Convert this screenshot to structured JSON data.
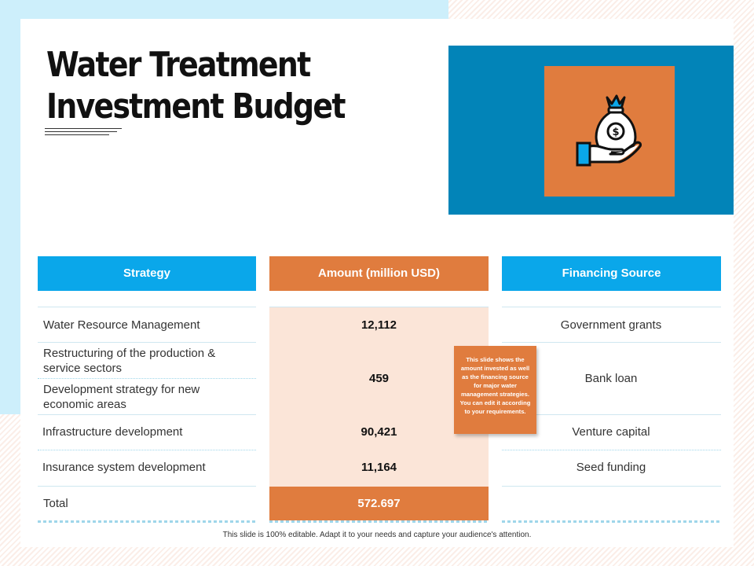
{
  "title": {
    "line1": "Water Treatment",
    "line2": "Investment Budget"
  },
  "icon": "money-bag-on-hand-icon",
  "colors": {
    "blue": "#0aa7ea",
    "orange": "#e07c3e",
    "dark_blue": "#0284b8",
    "light_orange": "#fbe5d8"
  },
  "table": {
    "headers": {
      "strategy": "Strategy",
      "amount": "Amount (million USD)",
      "source": "Financing Source"
    },
    "rows": [
      {
        "strategy": "Water Resource Management",
        "amount": "12,112",
        "source": "Government  grants"
      },
      {
        "strategy": "Restructuring  of the production &\nservice sectors",
        "amount": "459",
        "source": "Bank loan"
      },
      {
        "strategy": "Development strategy for new\neconomic areas"
      },
      {
        "strategy": "Infrastructure  development",
        "amount": "90,421",
        "source": "Venture capital"
      },
      {
        "strategy": "Insurance  system  development",
        "amount": "11,164",
        "source": "Seed funding"
      }
    ],
    "total": {
      "label": "Total",
      "amount": "572.697"
    }
  },
  "note": "This slide shows the amount invested as well as the financing source for major water management strategies. You can edit it according to your requirements.",
  "footer": "This slide is 100% editable.  Adapt it to your needs and capture your audience's attention."
}
